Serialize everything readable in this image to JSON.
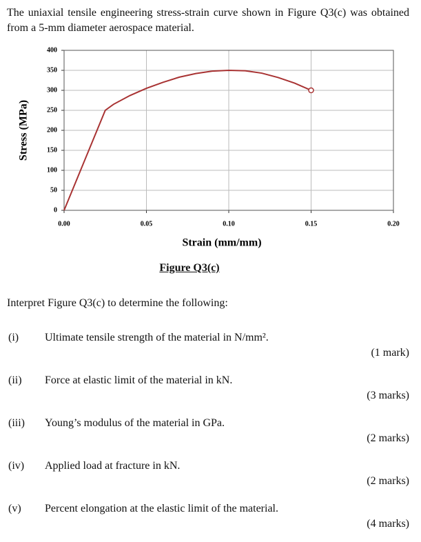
{
  "intro": "The uniaxial tensile engineering stress-strain curve shown in Figure Q3(c) was obtained from a 5-mm diameter aerospace material.",
  "chart_data": {
    "type": "line",
    "xlabel": "Strain (mm/mm)",
    "ylabel": "Stress (MPa)",
    "x": [
      0,
      0.025,
      0.03,
      0.04,
      0.05,
      0.06,
      0.07,
      0.08,
      0.09,
      0.1,
      0.11,
      0.12,
      0.13,
      0.14,
      0.15
    ],
    "values": [
      0,
      250,
      265,
      287,
      305,
      320,
      333,
      342,
      348,
      350,
      349,
      343,
      332,
      318,
      300
    ],
    "color": "#a83232",
    "xlim": [
      0,
      0.2
    ],
    "ylim": [
      0,
      400
    ],
    "xticks": [
      {
        "value": 0,
        "label": "0.00"
      },
      {
        "value": 0.05,
        "label": "0.05"
      },
      {
        "value": 0.1,
        "label": "0.10"
      },
      {
        "value": 0.15,
        "label": "0.15"
      },
      {
        "value": 0.2,
        "label": "0.20"
      }
    ],
    "yticks": [
      0,
      50,
      100,
      150,
      200,
      250,
      300,
      350,
      400
    ],
    "grid": true
  },
  "caption": "Figure Q3(c)",
  "prompt": "Interpret Figure Q3(c) to determine the following:",
  "items": [
    {
      "label": "(i)",
      "text": "Ultimate tensile strength of the material in N/mm².",
      "marks": "(1 mark)"
    },
    {
      "label": "(ii)",
      "text": "Force at elastic limit of the material in kN.",
      "marks": "(3 marks)"
    },
    {
      "label": "(iii)",
      "text": "Young’s modulus of the material in GPa.",
      "marks": "(2 marks)"
    },
    {
      "label": "(iv)",
      "text": "Applied load at fracture in kN.",
      "marks": "(2 marks)"
    },
    {
      "label": "(v)",
      "text": "Percent elongation at the elastic limit of the material.",
      "marks": "(4 marks)"
    }
  ]
}
